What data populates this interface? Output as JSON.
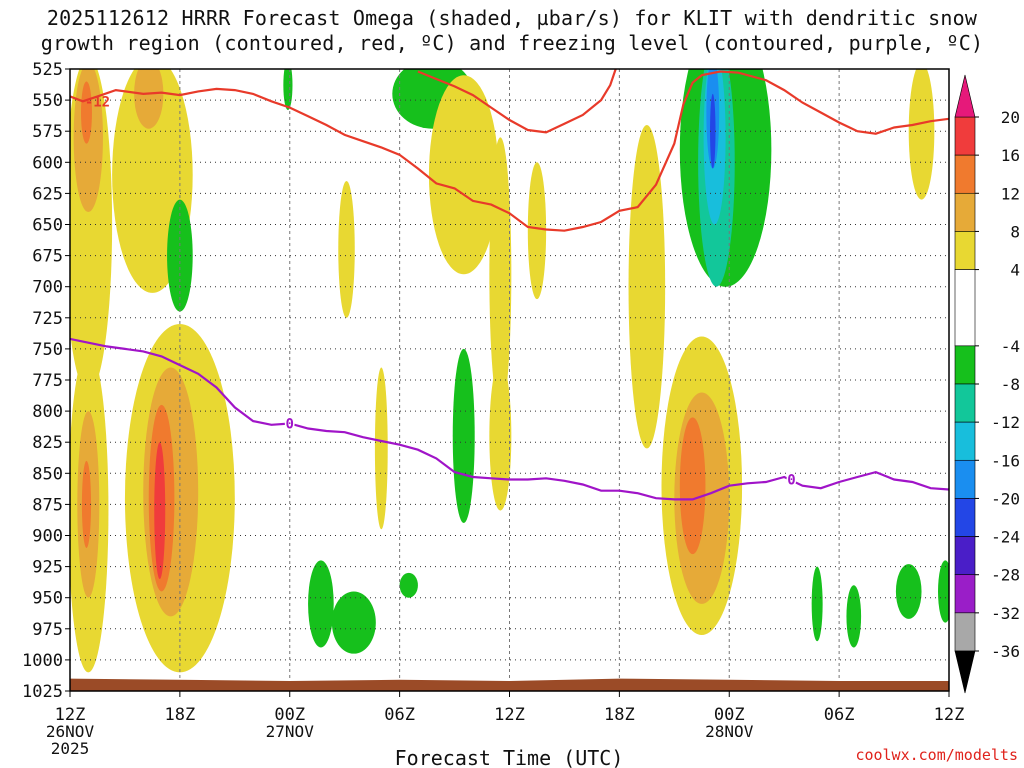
{
  "chart_data": {
    "type": "heatmap",
    "title_line1": "2025112612 HRRR Forecast Omega (shaded, µbar/s) for KLIT with dendritic snow",
    "title_line2": "growth region (contoured, red, ºC) and freezing level (contoured, purple, ºC)",
    "xlabel": "Forecast Time (UTC)",
    "credit": "coolwx.com/modelts",
    "x_range_hours": [
      0,
      48
    ],
    "x_ticks": [
      {
        "hour": 0,
        "label": "12Z",
        "date": "26NOV",
        "year": "2025"
      },
      {
        "hour": 6,
        "label": "18Z"
      },
      {
        "hour": 12,
        "label": "00Z",
        "date": "27NOV"
      },
      {
        "hour": 18,
        "label": "06Z"
      },
      {
        "hour": 24,
        "label": "12Z"
      },
      {
        "hour": 30,
        "label": "18Z"
      },
      {
        "hour": 36,
        "label": "00Z",
        "date": "28NOV"
      },
      {
        "hour": 42,
        "label": "06Z"
      },
      {
        "hour": 48,
        "label": "12Z"
      }
    ],
    "y_range_hpa": [
      525,
      1025
    ],
    "y_ticks": [
      "525",
      "550",
      "575",
      "600",
      "625",
      "650",
      "675",
      "700",
      "725",
      "750",
      "775",
      "800",
      "825",
      "850",
      "875",
      "900",
      "925",
      "950",
      "975",
      "1000",
      "1025"
    ],
    "colorbar": {
      "min": -36,
      "max": 20,
      "labels": [
        "20",
        "16",
        "12",
        "8",
        "4",
        "-4",
        "-8",
        "-12",
        "-16",
        "-20",
        "-24",
        "-28",
        "-32",
        "-36"
      ],
      "bins": [
        {
          "lo": 16,
          "hi": 20,
          "color": "#f03c3c"
        },
        {
          "lo": 12,
          "hi": 16,
          "color": "#f07a2e"
        },
        {
          "lo": 8,
          "hi": 12,
          "color": "#e6aa38"
        },
        {
          "lo": 4,
          "hi": 8,
          "color": "#e8d832"
        },
        {
          "lo": -4,
          "hi": 4,
          "color": "#ffffff"
        },
        {
          "lo": -8,
          "hi": -4,
          "color": "#16c01c"
        },
        {
          "lo": -12,
          "hi": -8,
          "color": "#12c79a"
        },
        {
          "lo": -16,
          "hi": -12,
          "color": "#18bedc"
        },
        {
          "lo": -20,
          "hi": -16,
          "color": "#1a8ef0"
        },
        {
          "lo": -24,
          "hi": -20,
          "color": "#2346e6"
        },
        {
          "lo": -28,
          "hi": -24,
          "color": "#4a1ec8"
        },
        {
          "lo": -32,
          "hi": -28,
          "color": "#9a1ec8"
        },
        {
          "lo": -36,
          "hi": -32,
          "color": "#a8a8a8"
        }
      ],
      "top_arrow_color": "#e6197a",
      "bottom_arrow_color": "#000000"
    },
    "omega_features": [
      {
        "name": "up1-outer",
        "value": 6,
        "hour": 1.0,
        "hpa": 650,
        "rh": 1.3,
        "rp": 135
      },
      {
        "name": "up1-mid",
        "value": 10,
        "hour": 1.0,
        "hpa": 580,
        "rh": 0.8,
        "rp": 60
      },
      {
        "name": "up1-core",
        "value": 14,
        "hour": 0.9,
        "hpa": 560,
        "rh": 0.3,
        "rp": 25
      },
      {
        "name": "up2-outer",
        "value": 6,
        "hour": 4.5,
        "hpa": 610,
        "rh": 2.2,
        "rp": 95
      },
      {
        "name": "up2-core",
        "value": 10,
        "hour": 4.3,
        "hpa": 545,
        "rh": 0.8,
        "rp": 28
      },
      {
        "name": "down-small",
        "value": -6,
        "hour": 6.0,
        "hpa": 675,
        "rh": 0.7,
        "rp": 45
      },
      {
        "name": "up-mid-a",
        "value": 6,
        "hour": 15.1,
        "hpa": 670,
        "rh": 0.45,
        "rp": 55
      },
      {
        "name": "down-top-a",
        "value": -6,
        "hour": 11.9,
        "hpa": 538,
        "rh": 0.25,
        "rp": 20
      },
      {
        "name": "down-top-b",
        "value": -6,
        "hour": 19.8,
        "hpa": 545,
        "rh": 2.2,
        "rp": 28
      },
      {
        "name": "up-mid-b",
        "value": 6,
        "hour": 21.5,
        "hpa": 610,
        "rh": 1.9,
        "rp": 80
      },
      {
        "name": "up-mid-c",
        "value": 6,
        "hour": 25.5,
        "hpa": 655,
        "rh": 0.5,
        "rp": 55
      },
      {
        "name": "up-mid-d",
        "value": 6,
        "hour": 23.5,
        "hpa": 690,
        "rh": 0.6,
        "rp": 110
      },
      {
        "name": "up-low-a",
        "value": 6,
        "hour": 23.5,
        "hpa": 820,
        "rh": 0.6,
        "rp": 60
      },
      {
        "name": "up-mid-e",
        "value": 6,
        "hour": 31.5,
        "hpa": 700,
        "rh": 1.0,
        "rp": 130
      },
      {
        "name": "up-right-top",
        "value": 6,
        "hour": 46.5,
        "hpa": 575,
        "rh": 0.7,
        "rp": 55
      },
      {
        "name": "down-core-out",
        "value": -6,
        "hour": 35.8,
        "hpa": 590,
        "rh": 2.5,
        "rp": 110
      },
      {
        "name": "down-core-mid",
        "value": -10,
        "hour": 35.3,
        "hpa": 600,
        "rh": 1.0,
        "rp": 100
      },
      {
        "name": "down-core-in",
        "value": -14,
        "hour": 35.2,
        "hpa": 580,
        "rh": 0.6,
        "rp": 70
      },
      {
        "name": "down-core-deep",
        "value": -18,
        "hour": 35.1,
        "hpa": 560,
        "rh": 0.35,
        "rp": 45
      },
      {
        "name": "down-core-max",
        "value": -22,
        "hour": 35.1,
        "hpa": 575,
        "rh": 0.15,
        "rp": 30
      },
      {
        "name": "down-low-a",
        "value": -6,
        "hour": 21.5,
        "hpa": 820,
        "rh": 0.6,
        "rp": 70
      },
      {
        "name": "down-low-b",
        "value": -6,
        "hour": 13.7,
        "hpa": 955,
        "rh": 0.7,
        "rp": 35
      },
      {
        "name": "down-low-c",
        "value": -6,
        "hour": 15.5,
        "hpa": 970,
        "rh": 1.2,
        "rp": 25
      },
      {
        "name": "down-low-d",
        "value": -6,
        "hour": 18.5,
        "hpa": 940,
        "rh": 0.5,
        "rp": 10
      },
      {
        "name": "up-low-b",
        "value": 6,
        "hour": 17.0,
        "hpa": 830,
        "rh": 0.35,
        "rp": 65
      },
      {
        "name": "up3-outer",
        "value": 6,
        "hour": 1.0,
        "hpa": 880,
        "rh": 1.1,
        "rp": 130
      },
      {
        "name": "up3-mid",
        "value": 10,
        "hour": 1.0,
        "hpa": 875,
        "rh": 0.6,
        "rp": 75
      },
      {
        "name": "up3-core",
        "value": 14,
        "hour": 0.9,
        "hpa": 875,
        "rh": 0.25,
        "rp": 35
      },
      {
        "name": "up4-outer",
        "value": 6,
        "hour": 6.0,
        "hpa": 870,
        "rh": 3.0,
        "rp": 140
      },
      {
        "name": "up4-mid",
        "value": 10,
        "hour": 5.5,
        "hpa": 865,
        "rh": 1.5,
        "rp": 100
      },
      {
        "name": "up4-in",
        "value": 14,
        "hour": 5.0,
        "hpa": 870,
        "rh": 0.7,
        "rp": 75
      },
      {
        "name": "up4-core",
        "value": 18,
        "hour": 4.9,
        "hpa": 880,
        "rh": 0.3,
        "rp": 55
      },
      {
        "name": "up5-outer",
        "value": 6,
        "hour": 34.5,
        "hpa": 860,
        "rh": 2.2,
        "rp": 120
      },
      {
        "name": "up5-mid",
        "value": 10,
        "hour": 34.5,
        "hpa": 870,
        "rh": 1.5,
        "rp": 85
      },
      {
        "name": "up5-core",
        "value": 14,
        "hour": 34.0,
        "hpa": 860,
        "rh": 0.7,
        "rp": 55
      },
      {
        "name": "down-right-a",
        "value": -6,
        "hour": 40.8,
        "hpa": 955,
        "rh": 0.3,
        "rp": 30
      },
      {
        "name": "down-right-b",
        "value": -6,
        "hour": 42.8,
        "hpa": 965,
        "rh": 0.4,
        "rp": 25
      },
      {
        "name": "down-right-c",
        "value": -6,
        "hour": 45.8,
        "hpa": 945,
        "rh": 0.7,
        "rp": 22
      },
      {
        "name": "down-right-d",
        "value": -6,
        "hour": 47.8,
        "hpa": 945,
        "rh": 0.4,
        "rp": 25
      }
    ],
    "dgz_contour": {
      "color": "#e83a2a",
      "label": "-12",
      "segments": [
        [
          [
            0.0,
            547
          ],
          [
            0.7,
            551
          ],
          [
            1.5,
            547
          ],
          [
            2.5,
            542
          ],
          [
            4.0,
            545
          ],
          [
            5.0,
            544
          ],
          [
            6.0,
            546
          ],
          [
            7.0,
            543
          ],
          [
            8.0,
            541
          ],
          [
            9.0,
            542
          ],
          [
            10.0,
            545
          ],
          [
            11.0,
            551
          ],
          [
            12.0,
            556
          ],
          [
            13.0,
            563
          ],
          [
            14.0,
            570
          ],
          [
            15.0,
            578
          ],
          [
            16.0,
            583
          ],
          [
            17.0,
            588
          ],
          [
            18.0,
            594
          ],
          [
            19.0,
            605
          ],
          [
            20.0,
            617
          ],
          [
            21.0,
            621
          ],
          [
            22.0,
            631
          ],
          [
            23.0,
            634
          ],
          [
            24.0,
            641
          ],
          [
            25.0,
            652
          ],
          [
            26.0,
            654
          ],
          [
            27.0,
            655
          ],
          [
            28.0,
            652
          ],
          [
            29.0,
            648
          ],
          [
            30.0,
            639
          ],
          [
            31.0,
            636
          ],
          [
            32.0,
            618
          ],
          [
            33.0,
            585
          ],
          [
            33.5,
            553
          ],
          [
            34.0,
            536
          ],
          [
            34.5,
            530
          ],
          [
            35.5,
            527
          ],
          [
            36.5,
            528
          ],
          [
            38.0,
            534
          ],
          [
            39.0,
            542
          ],
          [
            40.0,
            552
          ],
          [
            41.0,
            560
          ],
          [
            42.0,
            568
          ],
          [
            43.0,
            575
          ],
          [
            44.0,
            577
          ],
          [
            45.0,
            572
          ],
          [
            46.0,
            570
          ],
          [
            47.0,
            567
          ],
          [
            48.0,
            565
          ]
        ],
        [
          [
            19.0,
            527
          ],
          [
            20.0,
            533
          ],
          [
            21.0,
            539
          ],
          [
            22.0,
            546
          ],
          [
            23.0,
            556
          ],
          [
            24.0,
            566
          ],
          [
            25.0,
            574
          ],
          [
            26.0,
            576
          ],
          [
            27.0,
            569
          ],
          [
            28.0,
            562
          ],
          [
            29.0,
            550
          ],
          [
            29.5,
            538
          ],
          [
            29.8,
            525
          ]
        ]
      ]
    },
    "freezing_contour": {
      "color": "#a014c8",
      "label": "0",
      "points": [
        [
          0.0,
          742
        ],
        [
          1.0,
          745
        ],
        [
          2.0,
          748
        ],
        [
          3.0,
          750
        ],
        [
          4.0,
          752
        ],
        [
          5.0,
          756
        ],
        [
          6.0,
          763
        ],
        [
          7.0,
          770
        ],
        [
          8.0,
          781
        ],
        [
          9.0,
          797
        ],
        [
          10.0,
          808
        ],
        [
          11.0,
          811
        ],
        [
          12.0,
          810
        ],
        [
          13.0,
          814
        ],
        [
          14.0,
          816
        ],
        [
          15.0,
          817
        ],
        [
          16.0,
          821
        ],
        [
          17.0,
          824
        ],
        [
          18.0,
          827
        ],
        [
          19.0,
          831
        ],
        [
          20.0,
          838
        ],
        [
          21.0,
          849
        ],
        [
          22.0,
          853
        ],
        [
          23.0,
          854
        ],
        [
          24.0,
          855
        ],
        [
          25.0,
          855
        ],
        [
          26.0,
          854
        ],
        [
          27.0,
          856
        ],
        [
          28.0,
          859
        ],
        [
          29.0,
          864
        ],
        [
          30.0,
          864
        ],
        [
          31.0,
          866
        ],
        [
          32.0,
          870
        ],
        [
          33.0,
          871
        ],
        [
          34.0,
          871
        ],
        [
          35.0,
          866
        ],
        [
          36.0,
          860
        ],
        [
          37.0,
          858
        ],
        [
          38.0,
          857
        ],
        [
          39.0,
          853
        ],
        [
          40.0,
          860
        ],
        [
          41.0,
          862
        ],
        [
          42.0,
          857
        ],
        [
          43.0,
          853
        ],
        [
          44.0,
          849
        ],
        [
          45.0,
          855
        ],
        [
          46.0,
          857
        ],
        [
          47.0,
          862
        ],
        [
          48.0,
          863
        ]
      ]
    },
    "ground": {
      "color": "#9b4b27",
      "top_hpa": [
        1015,
        1016,
        1017,
        1016,
        1017,
        1015,
        1016,
        1017,
        1017
      ]
    }
  }
}
